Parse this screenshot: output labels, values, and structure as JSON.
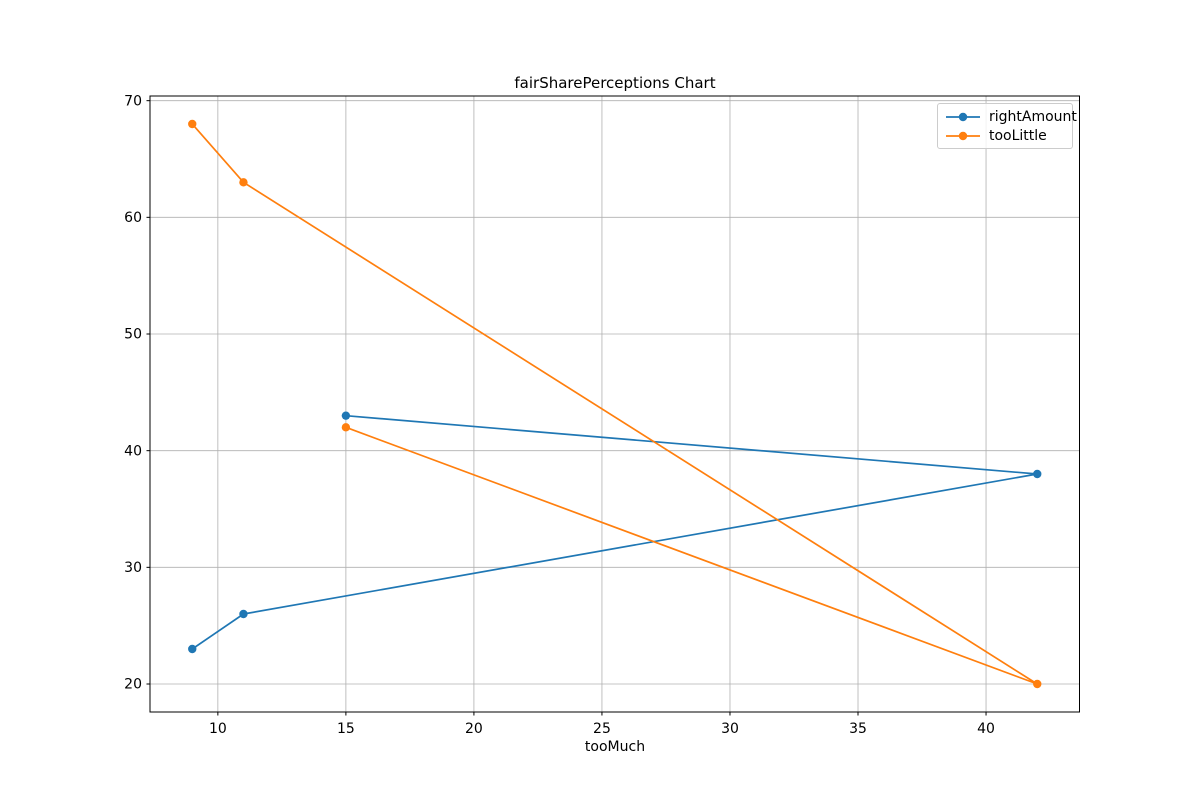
{
  "figure": {
    "background": "#ffffff"
  },
  "chart_data": {
    "type": "line",
    "title": "fairSharePerceptions Chart",
    "xlabel": "tooMuch",
    "ylabel": "",
    "x": [
      9,
      11,
      42,
      15
    ],
    "series": [
      {
        "name": "rightAmount",
        "color": "#1f77b4",
        "values": [
          23,
          26,
          38,
          43
        ]
      },
      {
        "name": "tooLittle",
        "color": "#ff7f0e",
        "values": [
          68,
          63,
          20,
          42
        ]
      }
    ],
    "xlim": [
      7.35,
      43.65
    ],
    "ylim": [
      17.6,
      70.4
    ],
    "xticks": [
      10,
      15,
      20,
      25,
      30,
      35,
      40
    ],
    "yticks": [
      20,
      30,
      40,
      50,
      60,
      70
    ],
    "grid": true,
    "grid_color": "#b0b0b0",
    "axis_color": "#000000",
    "marker": "o",
    "legend_position": "upper right"
  },
  "legend": {
    "items": [
      {
        "label": "rightAmount",
        "color": "#1f77b4"
      },
      {
        "label": "tooLittle",
        "color": "#ff7f0e"
      }
    ]
  }
}
